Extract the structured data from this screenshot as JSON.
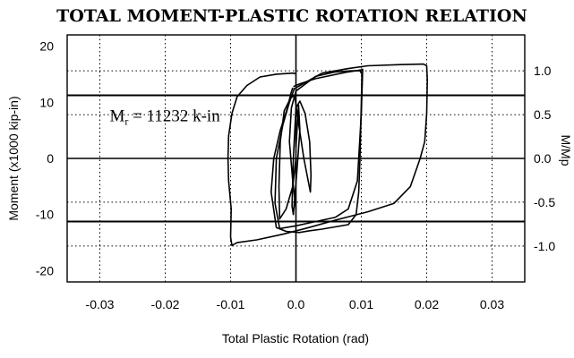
{
  "chart_data": {
    "type": "line",
    "title": "TOTAL MOMENT-PLASTIC ROTATION RELATION",
    "xlabel": "Total Plastic Rotation (rad)",
    "ylabel": "Moment (x1000 kip-in)",
    "y2label": "M/Mp",
    "xlim": [
      -0.035,
      0.035
    ],
    "ylim": [
      -22,
      22
    ],
    "y2lim": [
      -1.41,
      1.41
    ],
    "xticks": [
      "-0.03",
      "-0.02",
      "-0.01",
      "0.0",
      "0.01",
      "0.02",
      "0.03"
    ],
    "xtick_values": [
      -0.03,
      -0.02,
      -0.01,
      0.0,
      0.01,
      0.02,
      0.03
    ],
    "yticks": [
      "-20",
      "-10",
      "0",
      "10",
      "20"
    ],
    "ytick_values": [
      -20,
      -10,
      0,
      10,
      20
    ],
    "y2ticks": [
      "-1.0",
      "-0.5",
      "0.0",
      "0.5",
      "1.0"
    ],
    "y2tick_values": [
      -1.0,
      -0.5,
      0.0,
      0.5,
      1.0
    ],
    "grid": true,
    "reference_lines_y": [
      11.232,
      -11.232
    ],
    "annotation": {
      "main": "M",
      "subscript": "r",
      "rest": " = 11232 k-in",
      "x": -0.0285,
      "y": 6.6
    },
    "series": [
      {
        "x": [
          0.0,
          -0.0005,
          -0.0015,
          -0.0025,
          -0.0026,
          -0.0024,
          -0.0018,
          -0.0008,
          -0.0002,
          0.0003,
          0.0012,
          0.0022,
          0.0023,
          0.0021,
          0.0014,
          0.0006,
          0.0,
          -0.0004,
          -0.0006,
          -0.0004,
          0.0001,
          0.0006,
          0.0004,
          0.0
        ],
        "y": [
          0.0,
          -5.0,
          -9.0,
          -10.8,
          -5.0,
          3.0,
          8.5,
          10.8,
          11.2,
          7.0,
          0.0,
          -6.0,
          -3.0,
          3.0,
          8.0,
          10.2,
          9.0,
          0.0,
          -8.5,
          -10.0,
          -3.0,
          5.0,
          9.5,
          2.0
        ]
      },
      {
        "x": [
          0.0,
          -0.0005,
          -0.001,
          -0.0007,
          0.0,
          0.003,
          0.006,
          0.0085,
          0.0098,
          0.0101,
          0.01,
          0.0098,
          0.0096,
          0.0092,
          0.008,
          0.006,
          0.004,
          0.002,
          0.0005,
          -0.0015,
          -0.003,
          -0.0038,
          -0.0034,
          -0.0024,
          -0.0013,
          -0.0008,
          -0.0005
        ],
        "y": [
          -9.0,
          -4.0,
          3.0,
          9.0,
          12.0,
          14.6,
          15.4,
          15.6,
          15.6,
          15.0,
          10.0,
          0.0,
          -6.0,
          -10.0,
          -11.8,
          -12.2,
          -12.6,
          -12.9,
          -13.2,
          -13.0,
          -12.3,
          -6.0,
          0.0,
          5.0,
          9.0,
          11.5,
          12.6
        ]
      },
      {
        "x": [
          -0.0004,
          0.0006,
          0.003,
          0.0075,
          0.0101,
          0.0102,
          0.01,
          0.0094,
          0.008,
          0.006,
          0.004,
          0.002,
          0.0,
          -0.0025,
          -0.0032,
          -0.003,
          -0.002,
          -0.001,
          -0.0002
        ],
        "y": [
          12.8,
          13.3,
          14.2,
          15.3,
          15.8,
          15.9,
          8.0,
          -4.0,
          -9.0,
          -10.5,
          -11.0,
          -11.5,
          -12.0,
          -12.5,
          -8.0,
          0.0,
          6.0,
          10.0,
          12.6
        ]
      },
      {
        "x": [
          0.0,
          0.004,
          0.008,
          0.011,
          0.016,
          0.0195,
          0.02,
          0.0201,
          0.02,
          0.0197,
          0.019,
          0.0175,
          0.015,
          0.011,
          0.006,
          0.002,
          -0.002,
          -0.006,
          -0.009,
          -0.0098,
          -0.01,
          -0.0099,
          -0.0103,
          -0.0104,
          -0.0103,
          -0.0098,
          -0.009,
          -0.0075,
          -0.0055,
          -0.003,
          -0.0005,
          0.0
        ],
        "y": [
          12.6,
          15.2,
          16.0,
          16.5,
          16.7,
          16.8,
          16.5,
          14.0,
          8.0,
          3.0,
          0.0,
          -5.0,
          -8.0,
          -9.5,
          -11.0,
          -12.3,
          -13.5,
          -14.5,
          -15.0,
          -15.5,
          -14.0,
          -9.0,
          -4.0,
          0.0,
          4.0,
          8.0,
          11.0,
          13.0,
          14.5,
          15.0,
          15.2,
          15.1
        ]
      }
    ]
  }
}
